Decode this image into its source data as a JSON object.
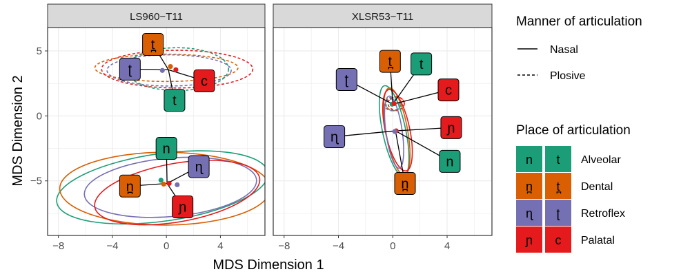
{
  "chart_data": {
    "type": "scatter",
    "xlabel": "MDS Dimension 1",
    "ylabel": "MDS Dimension 2",
    "xlim": [
      -8.8,
      7.3
    ],
    "ylim": [
      -9.2,
      6.8
    ],
    "x_ticks": [
      -8,
      -4,
      0,
      4
    ],
    "x_tick_labels": [
      "−8",
      "−4",
      "0",
      "4"
    ],
    "y_ticks": [
      5,
      0,
      -5
    ],
    "y_tick_labels": [
      "5",
      "0",
      "−5"
    ],
    "grid": true,
    "colors": {
      "Alveolar": "#1b9e77",
      "Dental": "#d95f02",
      "Retroflex": "#7570b3",
      "Palatal": "#e7298a"
    },
    "palatal_fill": "#e41a1c",
    "panels": [
      {
        "title": "LS960−T11",
        "lines": {
          "plosive_center": [
            0.15,
            3.55
          ],
          "nasal_center": [
            0.05,
            -5.2
          ]
        },
        "centroids": [
          {
            "place": "Dental",
            "manner": "Plosive",
            "x": 0.3,
            "y": 3.8
          },
          {
            "place": "Retroflex",
            "manner": "Plosive",
            "x": -0.3,
            "y": 3.5
          },
          {
            "place": "Palatal",
            "manner": "Plosive",
            "x": 0.7,
            "y": 3.55
          },
          {
            "place": "Alveolar",
            "manner": "Nasal",
            "x": -0.4,
            "y": -4.95
          },
          {
            "place": "Dental",
            "manner": "Nasal",
            "x": -0.2,
            "y": -5.25
          },
          {
            "place": "Palatal",
            "manner": "Nasal",
            "x": 0.2,
            "y": -5.2
          },
          {
            "place": "Retroflex",
            "manner": "Nasal",
            "x": 0.8,
            "y": -5.3
          }
        ],
        "labels": [
          {
            "glyph": "t̪",
            "place": "Dental",
            "manner": "Plosive",
            "x": -1.0,
            "y": 5.5
          },
          {
            "glyph": "ʈ",
            "place": "Retroflex",
            "manner": "Plosive",
            "x": -2.7,
            "y": 3.6
          },
          {
            "glyph": "c",
            "place": "Palatal",
            "manner": "Plosive",
            "x": 2.8,
            "y": 2.7
          },
          {
            "glyph": "t",
            "place": "Alveolar",
            "manner": "Plosive",
            "x": 0.6,
            "y": 1.2
          },
          {
            "glyph": "n",
            "place": "Alveolar",
            "manner": "Nasal",
            "x": 0.0,
            "y": -2.5
          },
          {
            "glyph": "ɳ",
            "place": "Retroflex",
            "manner": "Nasal",
            "x": 2.4,
            "y": -3.9
          },
          {
            "glyph": "n̪",
            "place": "Dental",
            "manner": "Nasal",
            "x": -2.7,
            "y": -5.4
          },
          {
            "glyph": "ɲ",
            "place": "Palatal",
            "manner": "Nasal",
            "x": 1.2,
            "y": -7.0
          }
        ],
        "ellipses": [
          {
            "place": "Dental",
            "manner": "Plosive",
            "cx": 0.0,
            "cy": 3.7,
            "rx": 5.3,
            "ry": 1.05,
            "angle": 0
          },
          {
            "place": "Palatal",
            "manner": "Plosive",
            "cx": 0.8,
            "cy": 3.6,
            "rx": 5.6,
            "ry": 1.45,
            "angle": 0
          },
          {
            "place": "Retroflex",
            "manner": "Plosive",
            "cx": 0.2,
            "cy": 3.5,
            "rx": 4.6,
            "ry": 1.2,
            "angle": 0
          },
          {
            "place": "Alveolar",
            "manner": "Plosive",
            "cx": 0.8,
            "cy": 3.6,
            "rx": 3.8,
            "ry": 1.65,
            "angle": 0
          },
          {
            "place": "Alveolar",
            "manner": "Nasal",
            "cx": -0.3,
            "cy": -5.5,
            "rx": 7.9,
            "ry": 2.6,
            "angle": 8
          },
          {
            "place": "Dental",
            "manner": "Nasal",
            "cx": -0.1,
            "cy": -5.6,
            "rx": 7.8,
            "ry": 2.8,
            "angle": 0
          },
          {
            "place": "Retroflex",
            "manner": "Nasal",
            "cx": 0.3,
            "cy": -5.5,
            "rx": 6.4,
            "ry": 2.25,
            "angle": 5
          },
          {
            "place": "Palatal",
            "manner": "Nasal",
            "cx": 0.8,
            "cy": -5.9,
            "rx": 6.2,
            "ry": 2.25,
            "angle": 10
          }
        ]
      },
      {
        "title": "XLSR53−T11",
        "lines": {
          "plosive_center": [
            0.0,
            0.9
          ],
          "nasal_center": [
            0.2,
            -1.15
          ]
        },
        "centroids": [
          {
            "place": "Alveolar",
            "manner": "Plosive",
            "x": -0.05,
            "y": 0.9
          },
          {
            "place": "Palatal",
            "manner": "Plosive",
            "x": 0.1,
            "y": 0.95
          },
          {
            "place": "Palatal",
            "manner": "Nasal",
            "x": 0.25,
            "y": -1.15
          },
          {
            "place": "Retroflex",
            "manner": "Nasal",
            "x": 0.15,
            "y": -1.2
          }
        ],
        "labels": [
          {
            "glyph": "t̪",
            "place": "Dental",
            "manner": "Plosive",
            "x": -0.2,
            "y": 4.2
          },
          {
            "glyph": "t",
            "place": "Alveolar",
            "manner": "Plosive",
            "x": 2.1,
            "y": 4.0
          },
          {
            "glyph": "ʈ",
            "place": "Retroflex",
            "manner": "Plosive",
            "x": -3.4,
            "y": 2.8
          },
          {
            "glyph": "c",
            "place": "Palatal",
            "manner": "Plosive",
            "x": 4.1,
            "y": 2.0
          },
          {
            "glyph": "ɲ",
            "place": "Palatal",
            "manner": "Nasal",
            "x": 4.3,
            "y": -0.9
          },
          {
            "glyph": "ɳ",
            "place": "Retroflex",
            "manner": "Nasal",
            "x": -4.3,
            "y": -1.6
          },
          {
            "glyph": "n",
            "place": "Alveolar",
            "manner": "Nasal",
            "x": 4.2,
            "y": -3.5
          },
          {
            "glyph": "n̪",
            "place": "Dental",
            "manner": "Nasal",
            "x": 0.9,
            "y": -5.2
          }
        ],
        "ellipses": [
          {
            "place": "Alveolar",
            "manner": "Plosive",
            "cx": 0.05,
            "cy": 0.9,
            "rx": 0.55,
            "ry": 0.5,
            "angle": 0
          },
          {
            "place": "Dental",
            "manner": "Plosive",
            "cx": 0.15,
            "cy": 0.95,
            "rx": 0.7,
            "ry": 0.55,
            "angle": 0
          },
          {
            "place": "Retroflex",
            "manner": "Plosive",
            "cx": -0.05,
            "cy": 0.85,
            "rx": 0.55,
            "ry": 0.45,
            "angle": 0
          },
          {
            "place": "Palatal",
            "manner": "Plosive",
            "cx": 0.25,
            "cy": 0.95,
            "rx": 0.6,
            "ry": 0.5,
            "angle": 0
          },
          {
            "place": "Alveolar",
            "manner": "Nasal",
            "cx": 0.1,
            "cy": -1.15,
            "rx": 0.85,
            "ry": 3.55,
            "angle": 12
          },
          {
            "place": "Dental",
            "manner": "Nasal",
            "cx": 0.3,
            "cy": -1.2,
            "rx": 0.8,
            "ry": 3.4,
            "angle": 10
          },
          {
            "place": "Palatal",
            "manner": "Nasal",
            "cx": 0.35,
            "cy": -1.1,
            "rx": 0.9,
            "ry": 3.2,
            "angle": 12
          },
          {
            "place": "Retroflex",
            "manner": "Nasal",
            "cx": 0.1,
            "cy": -1.25,
            "rx": 0.6,
            "ry": 2.8,
            "angle": 8
          }
        ]
      }
    ],
    "legend": {
      "manner_title": "Manner of articulation",
      "manner_items": [
        {
          "label": "Nasal",
          "dash": "solid"
        },
        {
          "label": "Plosive",
          "dash": "dashed"
        }
      ],
      "place_title": "Place of articulation",
      "place_items": [
        {
          "label": "Alveolar",
          "nasal": "n",
          "plosive": "t"
        },
        {
          "label": "Dental",
          "nasal": "n̪",
          "plosive": "t̪"
        },
        {
          "label": "Retroflex",
          "nasal": "ɳ",
          "plosive": "ʈ"
        },
        {
          "label": "Palatal",
          "nasal": "ɲ",
          "plosive": "c"
        }
      ],
      "placement": "right"
    }
  }
}
